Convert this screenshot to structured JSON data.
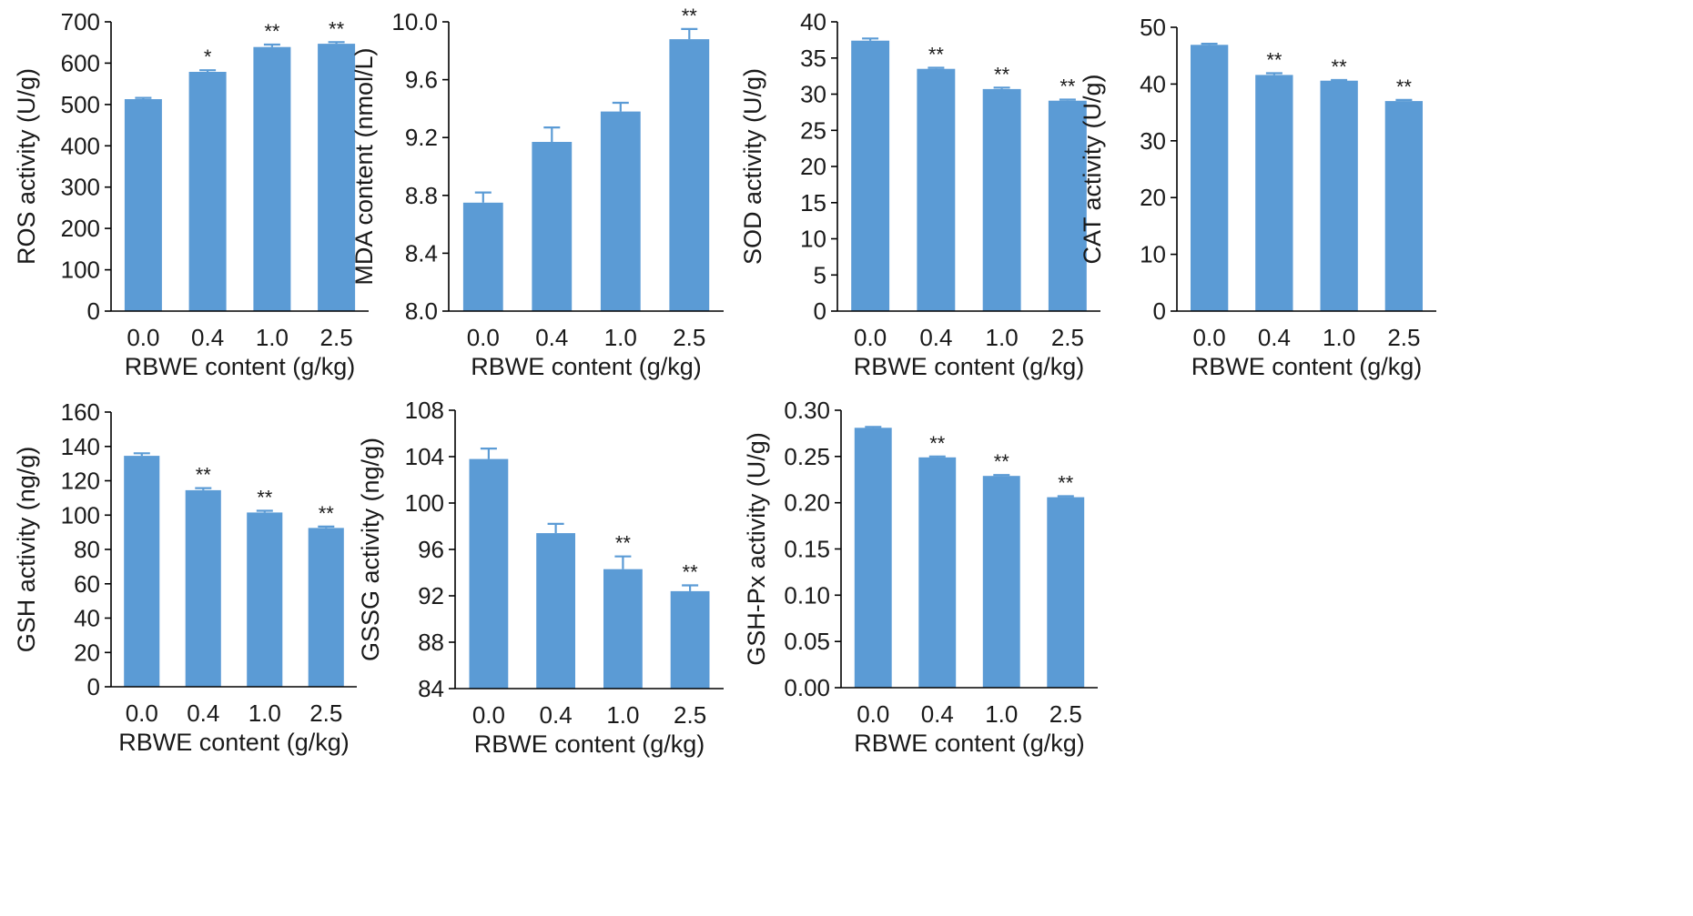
{
  "figure": {
    "bar_color": "#5b9bd5",
    "axis_color": "#000000",
    "text_color": "#1a1a1a"
  },
  "chart_data": [
    {
      "id": "ros",
      "type": "bar",
      "categories": [
        "0.0",
        "0.4",
        "1.0",
        "2.5"
      ],
      "values": [
        513,
        579,
        639,
        647
      ],
      "errors": [
        3,
        4,
        6,
        4
      ],
      "significance": [
        "",
        "*",
        "**",
        "**"
      ],
      "xlabel": "RBWE content (g/kg)",
      "ylabel": "ROS activity (U/g)",
      "ylim": [
        0,
        700
      ],
      "yticks": [
        0,
        100,
        200,
        300,
        400,
        500,
        600,
        700
      ],
      "ytick_labels": [
        "0",
        "100",
        "200",
        "300",
        "400",
        "500",
        "600",
        "700"
      ]
    },
    {
      "id": "mda",
      "type": "bar",
      "categories": [
        "0.0",
        "0.4",
        "1.0",
        "2.5"
      ],
      "values": [
        8.75,
        9.17,
        9.38,
        9.88
      ],
      "errors": [
        0.07,
        0.1,
        0.06,
        0.07
      ],
      "significance": [
        "",
        "",
        "",
        "**"
      ],
      "xlabel": "RBWE content (g/kg)",
      "ylabel": "MDA content  (nmol/L)",
      "ylim": [
        8.0,
        10.0
      ],
      "yticks": [
        8.0,
        8.4,
        8.8,
        9.2,
        9.6,
        10.0
      ],
      "ytick_labels": [
        "8.0",
        "8.4",
        "8.8",
        "9.2",
        "9.6",
        "10.0"
      ]
    },
    {
      "id": "sod",
      "type": "bar",
      "categories": [
        "0.0",
        "0.4",
        "1.0",
        "2.5"
      ],
      "values": [
        37.4,
        33.5,
        30.7,
        29.1
      ],
      "errors": [
        0.3,
        0.15,
        0.2,
        0.15
      ],
      "significance": [
        "",
        "**",
        "**",
        "**"
      ],
      "xlabel": "RBWE content (g/kg)",
      "ylabel": "SOD activity (U/g)",
      "ylim": [
        0,
        40
      ],
      "yticks": [
        0,
        5,
        10,
        15,
        20,
        25,
        30,
        35,
        40
      ],
      "ytick_labels": [
        "0",
        "5",
        "10",
        "15",
        "20",
        "25",
        "30",
        "35",
        "40"
      ]
    },
    {
      "id": "cat",
      "type": "bar",
      "categories": [
        "0.0",
        "0.4",
        "1.0",
        "2.5"
      ],
      "values": [
        46.9,
        41.6,
        40.6,
        37.0
      ],
      "errors": [
        0.2,
        0.3,
        0.1,
        0.2
      ],
      "significance": [
        "",
        "**",
        "**",
        "**"
      ],
      "xlabel": "RBWE content (g/kg)",
      "ylabel": "CAT activity (U/g)",
      "ylim": [
        0,
        50
      ],
      "yticks": [
        0,
        10,
        20,
        30,
        40,
        50
      ],
      "ytick_labels": [
        "0",
        "10",
        "20",
        "30",
        "40",
        "50"
      ]
    },
    {
      "id": "gsh",
      "type": "bar",
      "categories": [
        "0.0",
        "0.4",
        "1.0",
        "2.5"
      ],
      "values": [
        134.5,
        114.5,
        101.5,
        92.5
      ],
      "errors": [
        1.5,
        1.2,
        1.0,
        0.8
      ],
      "significance": [
        "",
        "**",
        "**",
        "**"
      ],
      "xlabel": "RBWE content (g/kg)",
      "ylabel": "GSH activity (ng/g)",
      "ylim": [
        0,
        160
      ],
      "yticks": [
        0,
        20,
        40,
        60,
        80,
        100,
        120,
        140,
        160
      ],
      "ytick_labels": [
        "0",
        "20",
        "40",
        "60",
        "80",
        "100",
        "120",
        "140",
        "160"
      ]
    },
    {
      "id": "gssg",
      "type": "bar",
      "categories": [
        "0.0",
        "0.4",
        "1.0",
        "2.5"
      ],
      "values": [
        103.8,
        97.4,
        94.3,
        92.4
      ],
      "errors": [
        0.9,
        0.8,
        1.1,
        0.5
      ],
      "significance": [
        "",
        "",
        "**",
        "**"
      ],
      "xlabel": "RBWE content (g/kg)",
      "ylabel": "GSSG activity (ng/g)",
      "ylim": [
        84,
        108
      ],
      "yticks": [
        84,
        88,
        92,
        96,
        100,
        104,
        108
      ],
      "ytick_labels": [
        "84",
        "88",
        "92",
        "96",
        "100",
        "104",
        "108"
      ]
    },
    {
      "id": "gshpx",
      "type": "bar",
      "categories": [
        "0.0",
        "0.4",
        "1.0",
        "2.5"
      ],
      "values": [
        0.281,
        0.249,
        0.229,
        0.206
      ],
      "errors": [
        0.001,
        0.001,
        0.001,
        0.001
      ],
      "significance": [
        "",
        "**",
        "**",
        "**"
      ],
      "xlabel": "RBWE content (g/kg)",
      "ylabel": "GSH-Px activity (U/g)",
      "ylim": [
        0,
        0.3
      ],
      "yticks": [
        0,
        0.05,
        0.1,
        0.15,
        0.2,
        0.25,
        0.3
      ],
      "ytick_labels": [
        "0.00",
        "0.05",
        "0.10",
        "0.15",
        "0.20",
        "0.25",
        "0.30"
      ]
    }
  ]
}
